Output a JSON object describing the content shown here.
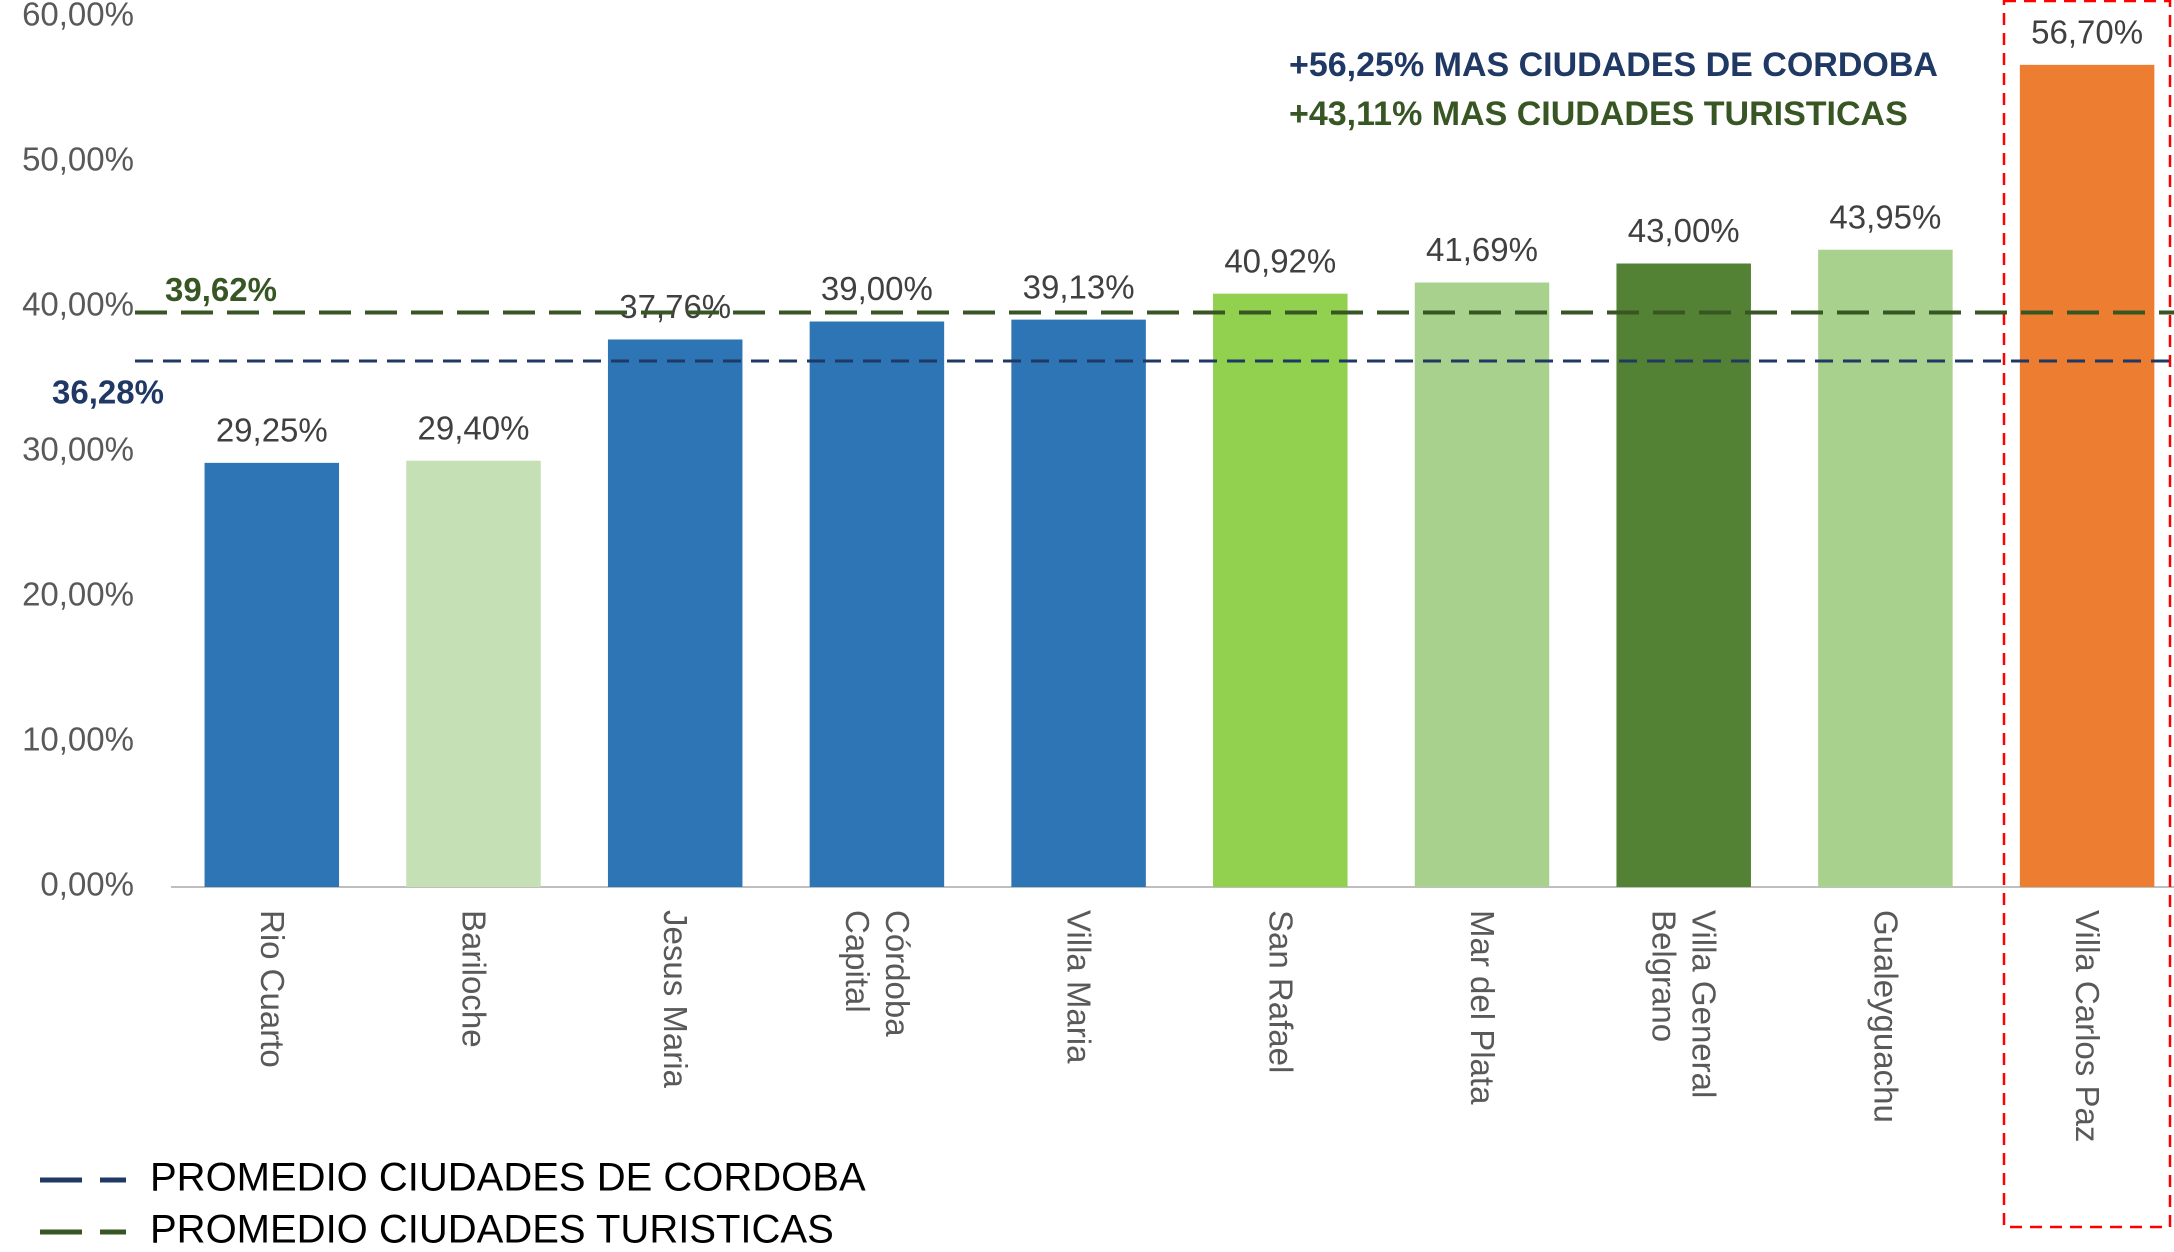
{
  "chart_data": {
    "type": "bar",
    "categories": [
      "Rio Cuarto",
      "Bariloche",
      "Jesus Maria",
      "Córdoba\nCapital",
      "Villa Maria",
      "San Rafael",
      "Mar del Plata",
      "Villa General\nBelgrano",
      "Gualeyguachu",
      "Villa Carlos Paz"
    ],
    "values": [
      29.25,
      29.4,
      37.76,
      39.0,
      39.13,
      40.92,
      41.69,
      43.0,
      43.95,
      56.7
    ],
    "value_labels": [
      "29,25%",
      "29,40%",
      "37,76%",
      "39,00%",
      "39,13%",
      "40,92%",
      "41,69%",
      "43,00%",
      "43,95%",
      "56,70%"
    ],
    "colors": [
      "#2e75b6",
      "#c5e0b4",
      "#2e75b6",
      "#2e75b6",
      "#2e75b6",
      "#92d050",
      "#a9d18e",
      "#548235",
      "#a9d18e",
      "#ed7d31"
    ],
    "ylim": [
      0,
      60
    ],
    "yticks": [
      {
        "value": 0,
        "label": "0,00%"
      },
      {
        "value": 10,
        "label": "10,00%"
      },
      {
        "value": 20,
        "label": "20,00%"
      },
      {
        "value": 30,
        "label": "30,00%"
      },
      {
        "value": 40,
        "label": "40,00%"
      },
      {
        "value": 50,
        "label": "50,00%"
      },
      {
        "value": 60,
        "label": "60,00%"
      }
    ],
    "reference_lines": [
      {
        "name": "PROMEDIO CIUDADES DE CORDOBA",
        "value": 36.28,
        "label": "36,28%",
        "color": "#1f3864"
      },
      {
        "name": "PROMEDIO CIUDADES TURISTICAS",
        "value": 39.62,
        "label": "39,62%",
        "color": "#375623"
      }
    ],
    "annotations": [
      {
        "text": "+56,25% MAS  CIUDADES DE CORDOBA",
        "color": "#1f3864"
      },
      {
        "text": "+43,11%  MAS CIUDADES TURISTICAS",
        "color": "#375623"
      }
    ]
  }
}
